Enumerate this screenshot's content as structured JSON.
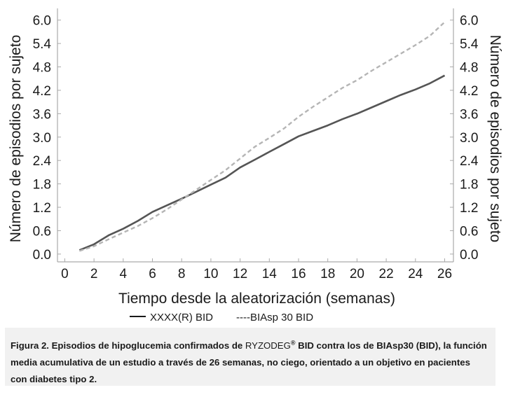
{
  "chart_data": {
    "type": "line",
    "xlabel": "Tiempo desde la aleatorización (semanas)",
    "ylabel_left": "Número de episodios por sujeto",
    "ylabel_right": "Número de episodios por sujeto",
    "x_ticks": [
      0,
      2,
      4,
      6,
      8,
      10,
      12,
      14,
      16,
      18,
      20,
      22,
      24,
      26
    ],
    "x_tick_labels": [
      "0",
      "2",
      "4",
      "6",
      "8",
      "10",
      "12",
      "14",
      "16",
      "18",
      "20",
      "22",
      "24",
      "26"
    ],
    "y_ticks": [
      0.0,
      0.6,
      1.2,
      1.8,
      2.4,
      3.0,
      3.6,
      4.2,
      4.8,
      5.4,
      6.0
    ],
    "y_tick_labels": [
      "0.0",
      "0.6",
      "1.2",
      "1.8",
      "2.4",
      "3.0",
      "3.6",
      "4.2",
      "4.8",
      "5.4",
      "6.0"
    ],
    "xlim": [
      -0.5,
      26.6
    ],
    "ylim": [
      -0.2,
      6.3
    ],
    "legend_position": "bottom",
    "series": [
      {
        "name": "XXXX(R) BID",
        "style": "solid",
        "color": "#555555",
        "x": [
          1.0,
          2.0,
          3.0,
          4.0,
          5.0,
          6.0,
          7.0,
          8.0,
          9.0,
          10.0,
          11.0,
          12.0,
          13.0,
          14.0,
          15.0,
          16.0,
          17.0,
          18.0,
          19.0,
          20.0,
          21.0,
          22.0,
          23.0,
          24.0,
          25.0,
          26.0
        ],
        "y": [
          0.1,
          0.25,
          0.48,
          0.65,
          0.85,
          1.08,
          1.25,
          1.42,
          1.6,
          1.78,
          1.96,
          2.22,
          2.42,
          2.62,
          2.82,
          3.02,
          3.16,
          3.3,
          3.46,
          3.6,
          3.76,
          3.92,
          4.08,
          4.22,
          4.38,
          4.58
        ]
      },
      {
        "name": "BIAsp 30 BID",
        "style": "dashed",
        "color": "#b5b5b5",
        "x": [
          1.0,
          2.0,
          3.0,
          4.0,
          5.0,
          6.0,
          7.0,
          8.0,
          9.0,
          10.0,
          11.0,
          12.0,
          13.0,
          14.0,
          15.0,
          16.0,
          17.0,
          18.0,
          19.0,
          20.0,
          21.0,
          22.0,
          23.0,
          24.0,
          25.0,
          26.0
        ],
        "y": [
          0.08,
          0.2,
          0.38,
          0.55,
          0.72,
          0.92,
          1.15,
          1.4,
          1.65,
          1.9,
          2.15,
          2.45,
          2.75,
          2.98,
          3.22,
          3.52,
          3.78,
          4.02,
          4.26,
          4.46,
          4.7,
          4.92,
          5.14,
          5.36,
          5.6,
          5.95
        ]
      }
    ]
  },
  "legend": {
    "item1_label": "XXXX(R) BID",
    "item2_label": "----BIAsp 30 BID"
  },
  "caption": {
    "part1": "Figura 2. Episodios de hipoglucemia confirmados de ",
    "brand": "RYZODEG",
    "reg_mark": "®",
    "part2": " BID contra los de BIAsp30 (BID), la función media acumulativa de un estudio a través de 26 semanas, no ciego, orientado a un objetivo en pacientes con diabetes tipo 2."
  },
  "colors": {
    "axis": "#aaaaaa",
    "text": "#1a1a1a",
    "caption_bg": "#f1f1f1"
  }
}
